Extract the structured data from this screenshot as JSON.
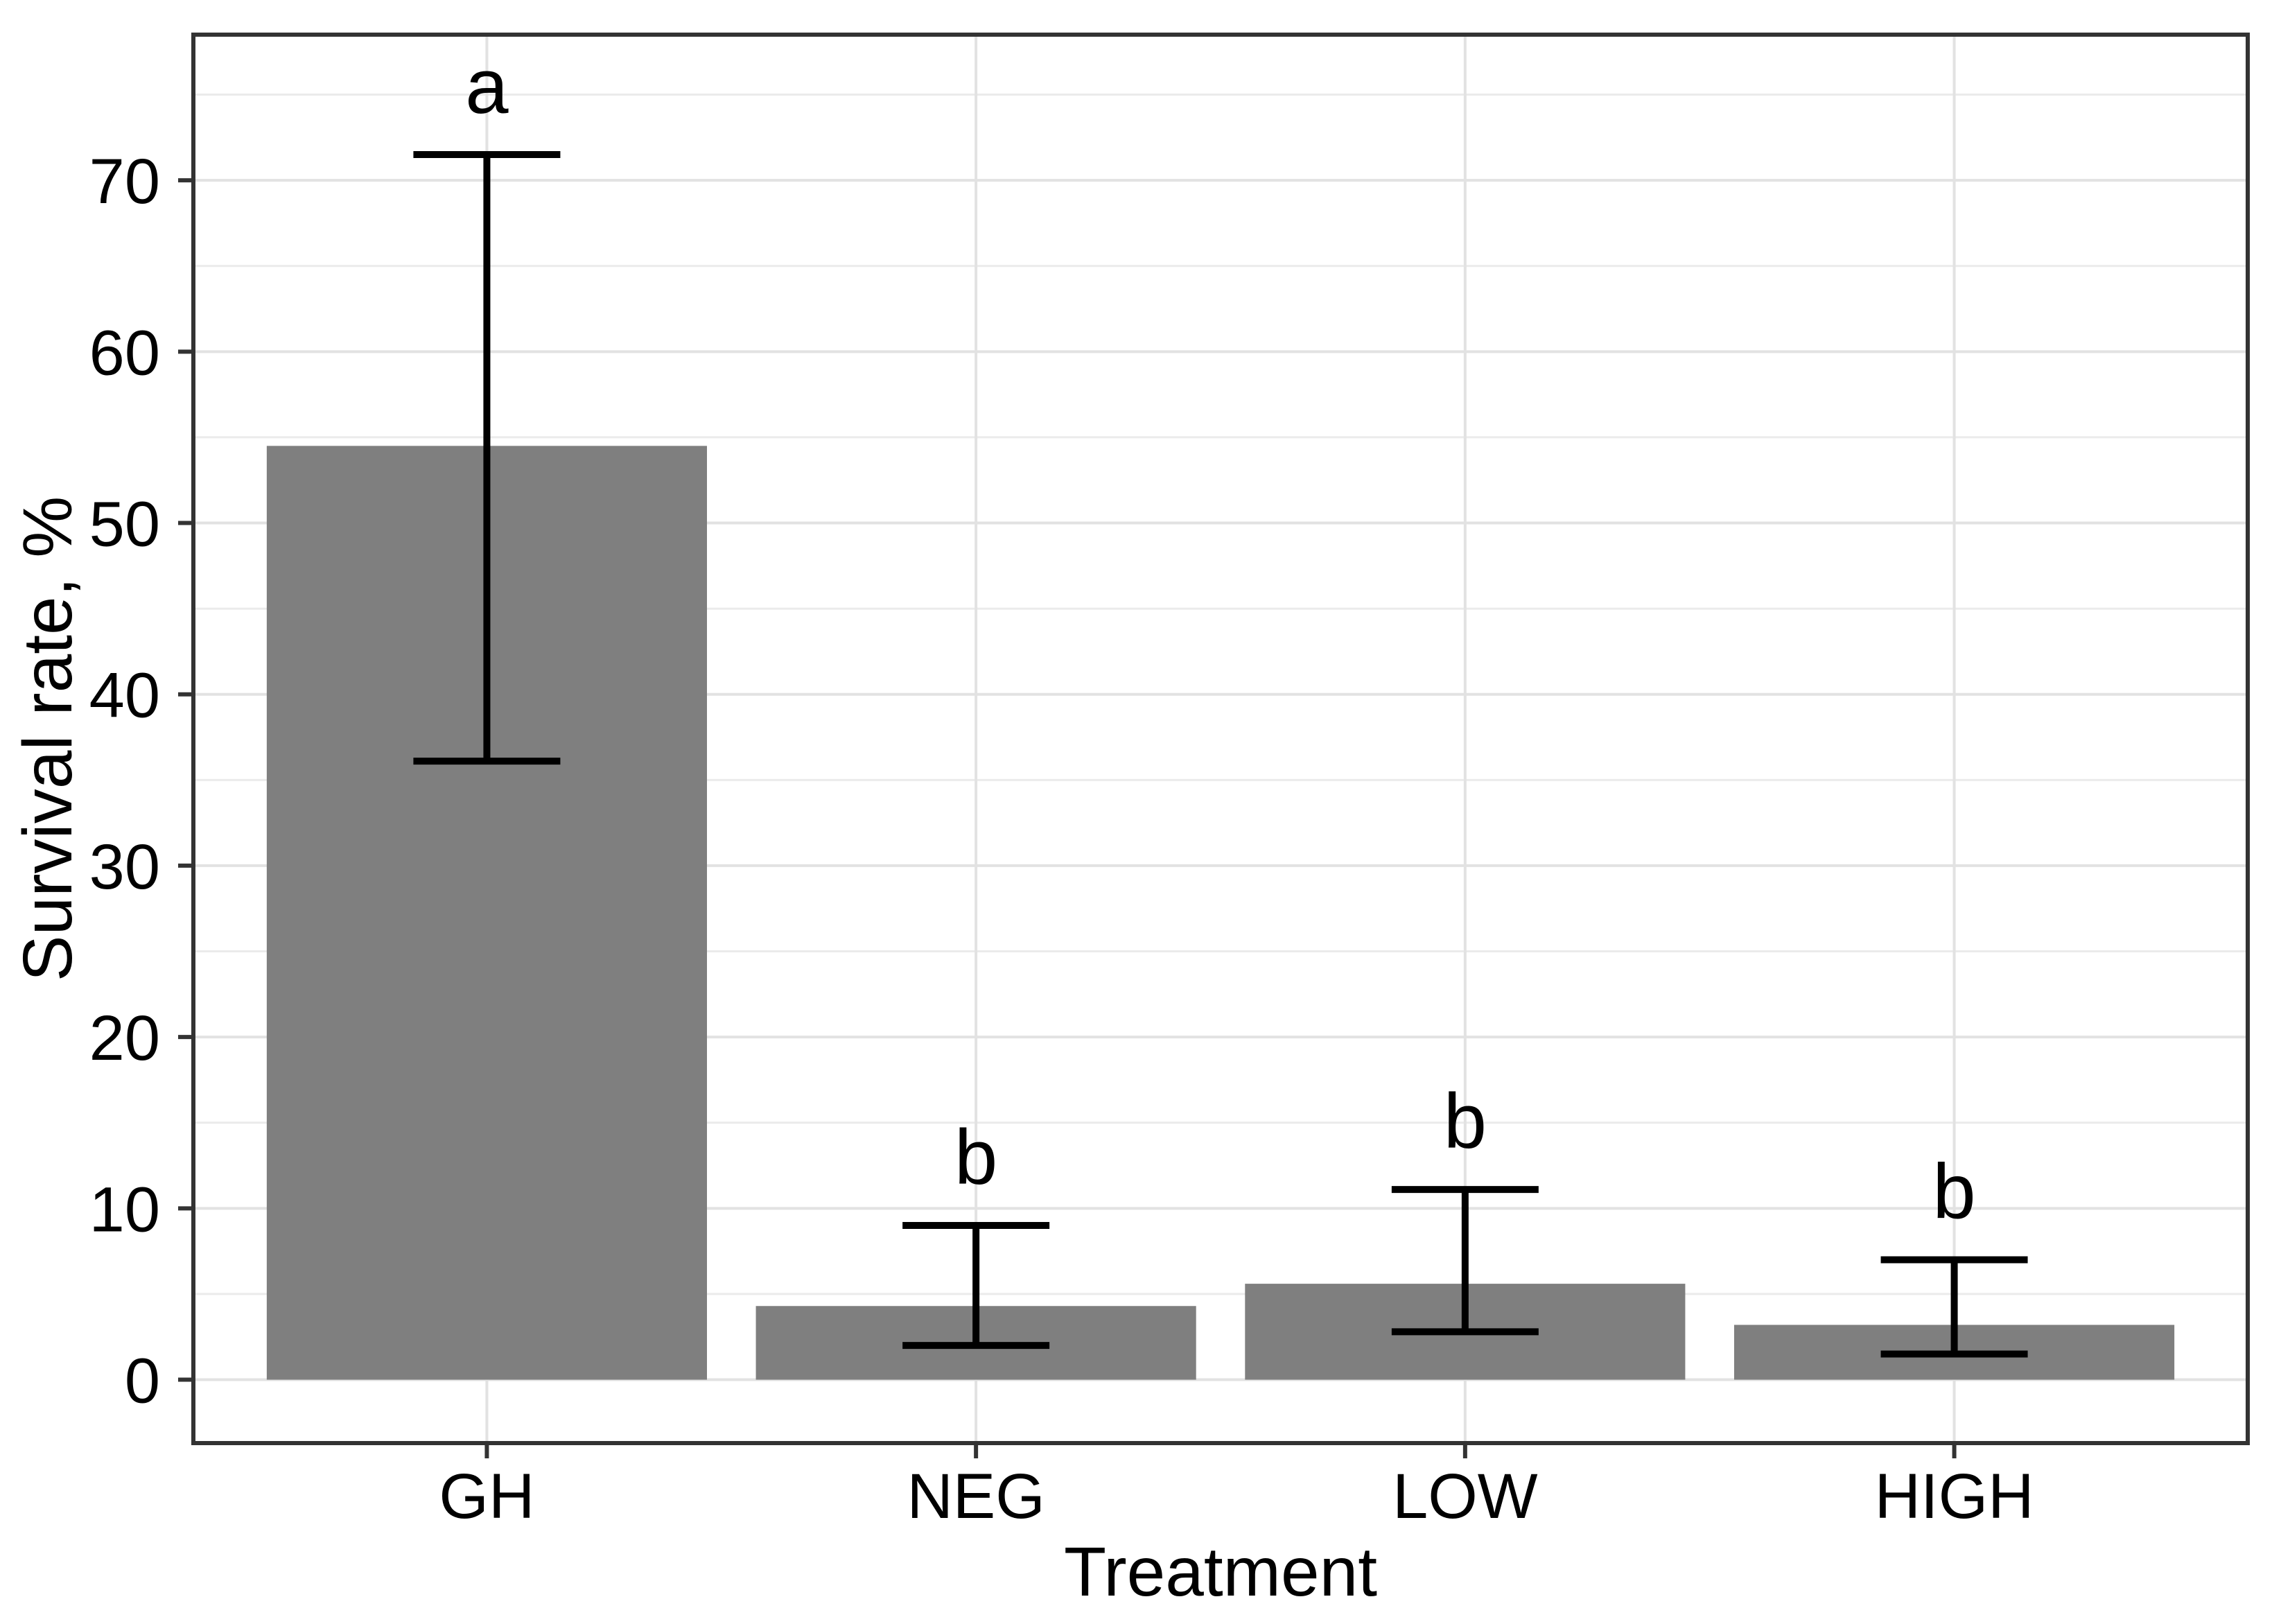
{
  "figure": {
    "description": "Bar chart of survival rate by treatment with error bars and significance letters"
  },
  "colors": {
    "background": "#ffffff",
    "bar_fill": "#7f7f7f",
    "grid_major": "#e2e2e2",
    "grid_minor": "#ebebeb",
    "panel_border": "#333333",
    "axis_tick": "#333333",
    "text": "#000000",
    "error_bar": "#000000"
  },
  "chart_data": {
    "type": "bar",
    "title": "",
    "xlabel": "Treatment",
    "ylabel": "Survival rate, %",
    "categories": [
      "GH",
      "NEG",
      "LOW",
      "HIGH"
    ],
    "values": [
      54.5,
      4.3,
      5.6,
      3.2
    ],
    "error_bars": {
      "lower": [
        36.1,
        2.0,
        2.8,
        1.5
      ],
      "upper": [
        71.5,
        9.0,
        11.1,
        7.0
      ]
    },
    "sig_letters": [
      "a",
      "b",
      "b",
      "b"
    ],
    "yticks": [
      0,
      10,
      20,
      30,
      40,
      50,
      60,
      70
    ],
    "minor_gridlines": [
      5,
      15,
      25,
      35,
      45,
      55,
      65,
      75
    ],
    "ylim": [
      -3.7,
      78.5
    ],
    "grid": true,
    "legend": false,
    "bar_rel_width": 0.9,
    "units": "%"
  }
}
